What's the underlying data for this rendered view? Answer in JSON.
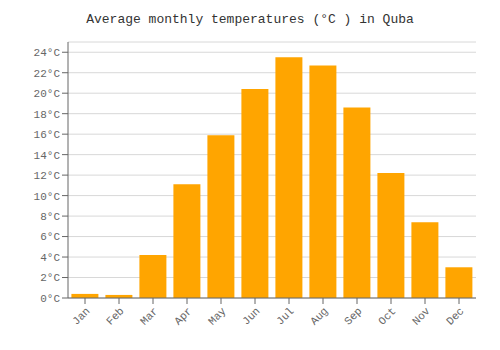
{
  "chart_data": {
    "type": "bar",
    "title": "Average monthly temperatures (°C ) in Quba",
    "categories": [
      "Jan",
      "Feb",
      "Mar",
      "Apr",
      "May",
      "Jun",
      "Jul",
      "Aug",
      "Sep",
      "Oct",
      "Nov",
      "Dec"
    ],
    "values": [
      0.4,
      0.3,
      4.2,
      11.1,
      15.9,
      20.4,
      23.5,
      22.7,
      18.6,
      12.2,
      7.4,
      3.0
    ],
    "color": "#FFA500",
    "ylim": [
      0,
      25
    ],
    "yticks": [
      {
        "value": 0,
        "label": "0°C"
      },
      {
        "value": 2,
        "label": "2°C"
      },
      {
        "value": 4,
        "label": "4°C"
      },
      {
        "value": 6,
        "label": "6°C"
      },
      {
        "value": 8,
        "label": "8°C"
      },
      {
        "value": 10,
        "label": "10°C"
      },
      {
        "value": 12,
        "label": "12°C"
      },
      {
        "value": 14,
        "label": "14°C"
      },
      {
        "value": 16,
        "label": "16°C"
      },
      {
        "value": 18,
        "label": "18°C"
      },
      {
        "value": 20,
        "label": "20°C"
      },
      {
        "value": 22,
        "label": "22°C"
      },
      {
        "value": 24,
        "label": "24°C"
      }
    ],
    "grid": true
  }
}
